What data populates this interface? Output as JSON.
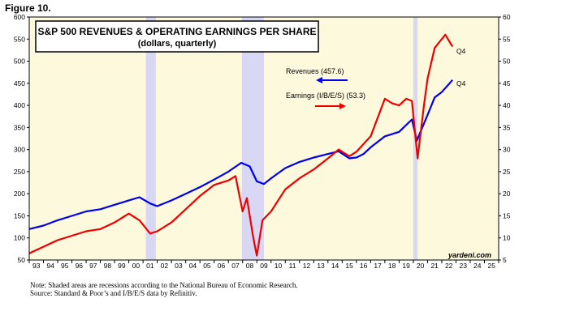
{
  "figure_label": "Figure 10.",
  "chart_data": {
    "type": "line",
    "title": "S&P 500 REVENUES & OPERATING EARNINGS PER SHARE",
    "subtitle": "(dollars, quarterly)",
    "x_range": [
      1993,
      2026
    ],
    "x_tick_labels": [
      "93",
      "94",
      "95",
      "96",
      "97",
      "98",
      "99",
      "00",
      "01",
      "02",
      "03",
      "04",
      "05",
      "06",
      "07",
      "08",
      "09",
      "10",
      "11",
      "12",
      "13",
      "14",
      "15",
      "16",
      "17",
      "18",
      "19",
      "20",
      "21",
      "22",
      "23",
      "24",
      "25"
    ],
    "y_left": {
      "range": [
        50,
        600
      ],
      "ticks": [
        50,
        100,
        150,
        200,
        250,
        300,
        350,
        400,
        450,
        500,
        550,
        600
      ]
    },
    "y_right": {
      "range": [
        5,
        60
      ],
      "ticks": [
        5,
        10,
        15,
        20,
        25,
        30,
        35,
        40,
        45,
        50,
        55,
        60
      ]
    },
    "recessions": [
      [
        2001.2,
        2001.9
      ],
      [
        2007.95,
        2009.5
      ],
      [
        2020.0,
        2020.3
      ]
    ],
    "background_color": "#fdf9dc",
    "recession_color": "#d8d8f4",
    "series": [
      {
        "name": "Revenues",
        "axis": "left",
        "color": "#0000ee",
        "x": [
          1993.0,
          1994.0,
          1995.0,
          1996.0,
          1997.0,
          1998.0,
          1999.0,
          2000.0,
          2000.75,
          2001.5,
          2002.0,
          2003.0,
          2004.0,
          2005.0,
          2006.0,
          2007.0,
          2007.9,
          2008.5,
          2009.0,
          2009.5,
          2010.0,
          2011.0,
          2012.0,
          2013.0,
          2014.0,
          2014.75,
          2015.5,
          2016.0,
          2016.5,
          2017.0,
          2018.0,
          2019.0,
          2019.9,
          2020.25,
          2020.5,
          2021.0,
          2021.5,
          2022.0,
          2022.5,
          2022.75
        ],
        "y": [
          120,
          128,
          140,
          150,
          160,
          165,
          175,
          185,
          192,
          178,
          172,
          185,
          200,
          215,
          232,
          250,
          270,
          262,
          228,
          222,
          235,
          258,
          272,
          282,
          290,
          296,
          280,
          282,
          290,
          305,
          330,
          340,
          368,
          320,
          340,
          378,
          418,
          430,
          448,
          457.6
        ]
      },
      {
        "name": "Earnings (I/B/E/S)",
        "axis": "right",
        "color": "#ee0000",
        "x": [
          1993.0,
          1994.0,
          1995.0,
          1996.0,
          1997.0,
          1998.0,
          1999.0,
          2000.0,
          2000.75,
          2001.5,
          2002.0,
          2003.0,
          2004.0,
          2005.0,
          2006.0,
          2007.0,
          2007.5,
          2008.0,
          2008.3,
          2008.75,
          2009.0,
          2009.4,
          2010.0,
          2011.0,
          2012.0,
          2013.0,
          2014.0,
          2014.75,
          2015.5,
          2016.0,
          2017.0,
          2018.0,
          2018.5,
          2019.0,
          2019.5,
          2019.9,
          2020.3,
          2020.75,
          2021.0,
          2021.5,
          2022.0,
          2022.25,
          2022.75
        ],
        "y": [
          6.5,
          8.0,
          9.5,
          10.5,
          11.5,
          12.0,
          13.5,
          15.5,
          14.0,
          11.0,
          11.5,
          13.5,
          16.5,
          19.5,
          22.0,
          23.0,
          24.0,
          16.0,
          19.0,
          10.0,
          6.0,
          14.0,
          16.0,
          21.0,
          23.5,
          25.5,
          28.0,
          30.0,
          28.5,
          29.5,
          33.0,
          41.5,
          40.5,
          40.0,
          41.5,
          41.0,
          28.0,
          40.0,
          46.0,
          53.0,
          55.0,
          56.0,
          53.3
        ]
      }
    ],
    "annotations": {
      "revenues_label": "Revenues (457.6)",
      "earnings_label": "Earnings (I/B/E/S) (53.3)",
      "revenues_end_label": "Q4",
      "earnings_end_label": "Q4",
      "source_credit": "yardeni.com"
    }
  },
  "notes": {
    "line1": "Note: Shaded areas are recessions according to the National Bureau of Economic Research.",
    "line2": "Source: Standard & Poor’s and I/B/E/S data by Refinitiv."
  }
}
